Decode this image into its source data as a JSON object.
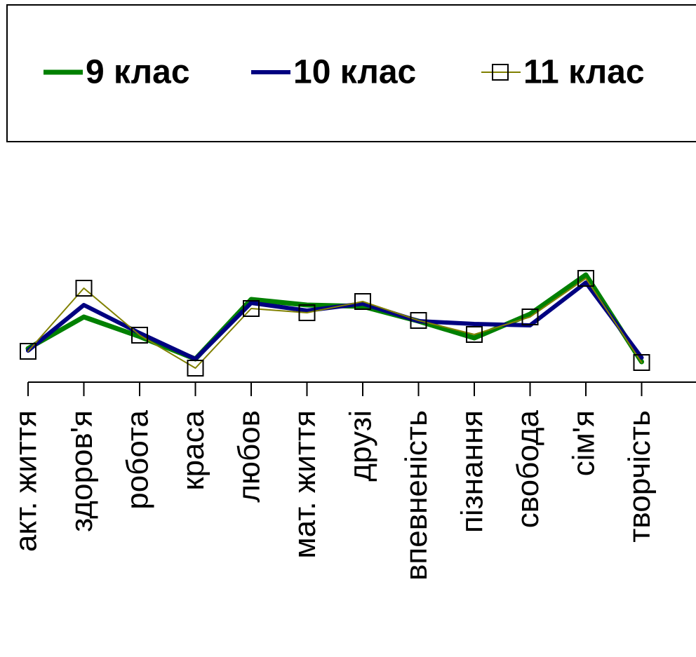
{
  "chart_data": {
    "type": "line",
    "categories": [
      "акт. життя",
      "здоров'я",
      "робота",
      "краса",
      "любов",
      "мат. життя",
      "друзі",
      "впевненість",
      "пізнання",
      "свобода",
      "сім'я",
      "творчість"
    ],
    "series": [
      {
        "name": "9 клас",
        "color": "#008000",
        "linewidth": 7,
        "values": [
          2.4,
          4.65,
          3.25,
          1.65,
          5.9,
          5.5,
          5.4,
          4.35,
          3.15,
          4.85,
          7.65,
          1.45
        ]
      },
      {
        "name": "10 клас",
        "color": "#000080",
        "linewidth": 6,
        "values": [
          2.25,
          5.5,
          3.5,
          1.65,
          5.65,
          5.1,
          5.6,
          4.35,
          4.15,
          4.05,
          7.1,
          1.75
        ]
      },
      {
        "name": "11 клас",
        "color": "#808000",
        "linewidth": 2,
        "marker": "square",
        "values": [
          2.2,
          6.7,
          3.35,
          1.0,
          5.25,
          4.95,
          5.75,
          4.4,
          3.4,
          4.65,
          7.4,
          1.4
        ]
      }
    ],
    "ylim": [
      0,
      10
    ],
    "legend": "top"
  }
}
